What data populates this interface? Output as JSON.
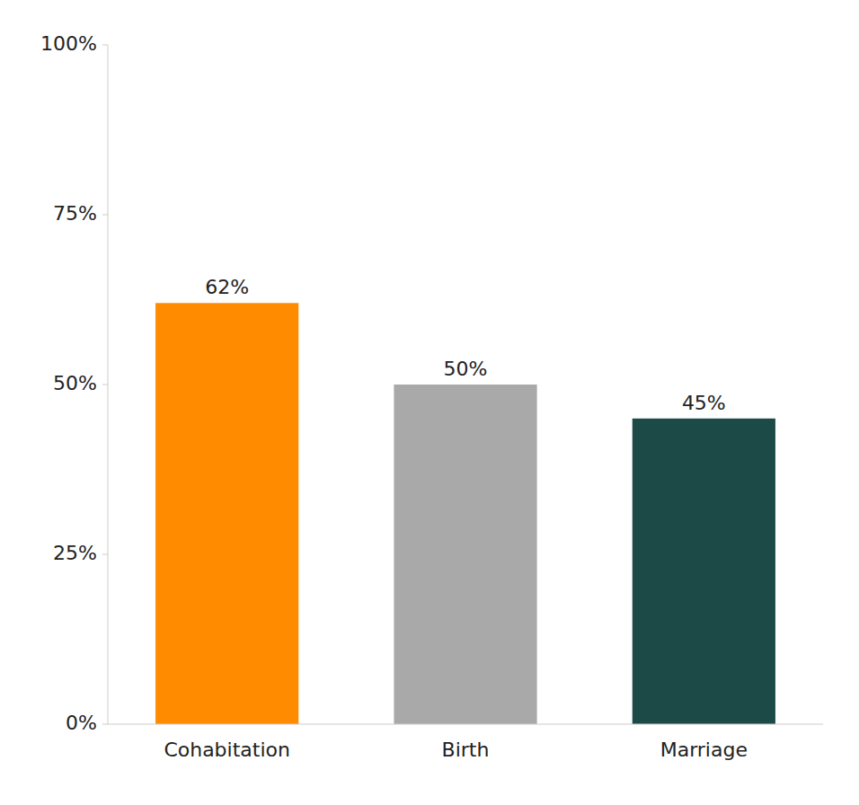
{
  "chart_data": {
    "type": "bar",
    "categories": [
      "Cohabitation",
      "Birth",
      "Marriage"
    ],
    "values": [
      62,
      50,
      45
    ],
    "value_labels": [
      "62%",
      "50%",
      "45%"
    ],
    "colors": [
      "#FF8C00",
      "#A9A9A9",
      "#1C4A47"
    ],
    "ylim": [
      0,
      100
    ],
    "yticks": [
      {
        "value": 0,
        "label": "0%"
      },
      {
        "value": 25,
        "label": "25%"
      },
      {
        "value": 50,
        "label": "50%"
      },
      {
        "value": 75,
        "label": "75%"
      },
      {
        "value": 100,
        "label": "100%"
      }
    ],
    "data_labels": true,
    "grid": false
  }
}
